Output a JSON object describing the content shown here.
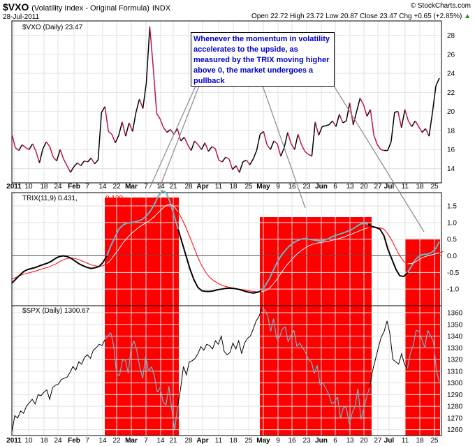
{
  "header": {
    "symbol": "$VXO",
    "description": "(Volatility Index - Original Formula)",
    "exchange": "INDX",
    "date": "28-Jul-2011",
    "brand": "© StockCharts.com",
    "ohlc": "Open 22.72  High 23.72  Low 20.87  Close 23.47  Chg +0.65 (+2.85%)",
    "ohlc_arrow": "▲"
  },
  "annotation": "Whenever the momentum in volatility accelerates to the upside, as measured by the TRIX moving higher above 0, the market undergoes a pullback",
  "colors": {
    "up": "#000000",
    "down": "#c0143c",
    "shade": "#ff0000",
    "trix": "#000000",
    "signal": "#ff0000",
    "spx": "#000000",
    "highlight": "#7ab8cc"
  },
  "chart_data": [
    {
      "type": "line",
      "title": "$VXO (Daily) 23.47",
      "x_ticks": [
        "2011",
        "10",
        "18",
        "24",
        "Feb",
        "7",
        "14",
        "22",
        "Mar",
        "7",
        "14",
        "21",
        "28",
        "Apr",
        "11",
        "18",
        "25",
        "May",
        "9",
        "16",
        "23",
        "Jun",
        "6",
        "13",
        "20",
        "27",
        "Jul",
        "11",
        "18",
        "25"
      ],
      "y_ticks": [
        14,
        16,
        18,
        20,
        22,
        24,
        26,
        28
      ],
      "ylim": [
        12.5,
        29.5
      ],
      "values": [
        17.6,
        16.2,
        15.9,
        16.5,
        16.2,
        16.0,
        16.6,
        15.8,
        14.6,
        16.1,
        16.8,
        16.3,
        15.2,
        14.8,
        16.0,
        15.0,
        14.3,
        13.6,
        14.2,
        14.6,
        14.3,
        14.8,
        14.7,
        15.1,
        14.5,
        14.9,
        19.9,
        20.5,
        17.9,
        17.6,
        16.7,
        17.5,
        18.9,
        17.4,
        18.8,
        17.9,
        19.9,
        21.3,
        20.3,
        23.0,
        28.9,
        24.6,
        19.8,
        19.2,
        18.3,
        17.8,
        18.1,
        17.6,
        18.2,
        16.9,
        17.3,
        16.5,
        15.9,
        16.9,
        16.5,
        16.0,
        16.7,
        15.8,
        16.3,
        16.1,
        14.9,
        14.7,
        15.2,
        15.0,
        13.9,
        14.3,
        13.6,
        14.7,
        14.9,
        14.4,
        15.0,
        15.9,
        17.6,
        17.9,
        16.5,
        16.0,
        16.9,
        16.6,
        15.3,
        16.2,
        17.8,
        16.6,
        16.0,
        17.6,
        16.5,
        15.8,
        15.5,
        15.3,
        18.9,
        17.5,
        18.4,
        18.5,
        18.6,
        19.0,
        18.4,
        19.7,
        18.8,
        19.0,
        20.9,
        18.6,
        20.0,
        21.4,
        20.7,
        19.5,
        20.2,
        17.5,
        16.5,
        16.0,
        15.9,
        15.9,
        16.8,
        19.9,
        20.0,
        18.3,
        20.2,
        19.0,
        18.4,
        19.0,
        18.4,
        17.8,
        18.2,
        17.4,
        19.9,
        22.7,
        23.5
      ],
      "down_values_color": "red",
      "up_values_color": "black"
    },
    {
      "type": "line",
      "title": "TRIX(11,9) 0.431, 0.130",
      "series_labels": [
        "TRIX(11,9) 0.431,",
        "0.130"
      ],
      "y_ticks": [
        -1.0,
        -0.5,
        0.0,
        0.5,
        1.0,
        1.5
      ],
      "ylim": [
        -1.5,
        1.9
      ],
      "zero_line": 0,
      "series": [
        {
          "values": [
            -0.82,
            -0.7,
            -0.58,
            -0.47,
            -0.41,
            -0.38,
            -0.35,
            -0.3,
            -0.26,
            -0.22,
            -0.16,
            -0.08,
            -0.02,
            0.0,
            -0.02,
            -0.08,
            -0.16,
            -0.24,
            -0.3,
            -0.35,
            -0.38,
            -0.36,
            -0.32,
            -0.2,
            0.0,
            0.3,
            0.55,
            0.8,
            0.92,
            0.98,
            1.0,
            1.02,
            1.05,
            1.1,
            1.2,
            1.35,
            1.55,
            1.8,
            1.95,
            1.9,
            1.6,
            1.2,
            0.8,
            0.4,
            0.0,
            -0.4,
            -0.72,
            -0.95,
            -1.05,
            -1.07,
            -1.07,
            -1.05,
            -1.02,
            -1.0,
            -0.98,
            -0.97,
            -0.98,
            -1.0,
            -1.03,
            -1.07,
            -1.1,
            -1.12,
            -1.1,
            -1.05,
            -0.9,
            -0.7,
            -0.45,
            -0.2,
            0.0,
            0.15,
            0.28,
            0.38,
            0.45,
            0.5,
            0.52,
            0.5,
            0.48,
            0.46,
            0.45,
            0.47,
            0.52,
            0.58,
            0.62,
            0.66,
            0.7,
            0.75,
            0.8,
            0.88,
            0.95,
            0.98,
            0.95,
            0.88,
            0.85,
            0.8,
            0.6,
            0.2,
            -0.1,
            -0.4,
            -0.6,
            -0.62,
            -0.5,
            -0.3,
            -0.1,
            0.0,
            0.05,
            0.05,
            0.1,
            0.2,
            0.43
          ]
        },
        {
          "values": [
            -0.7,
            -0.65,
            -0.6,
            -0.55,
            -0.52,
            -0.49,
            -0.46,
            -0.42,
            -0.38,
            -0.35,
            -0.3,
            -0.25,
            -0.18,
            -0.12,
            -0.08,
            -0.06,
            -0.08,
            -0.12,
            -0.17,
            -0.22,
            -0.27,
            -0.3,
            -0.32,
            -0.3,
            -0.24,
            -0.12,
            0.05,
            0.2,
            0.38,
            0.52,
            0.65,
            0.75,
            0.85,
            0.93,
            1.0,
            1.08,
            1.18,
            1.3,
            1.42,
            1.52,
            1.55,
            1.48,
            1.32,
            1.1,
            0.85,
            0.55,
            0.25,
            -0.05,
            -0.3,
            -0.5,
            -0.65,
            -0.75,
            -0.82,
            -0.88,
            -0.92,
            -0.95,
            -0.97,
            -0.99,
            -1.01,
            -1.03,
            -1.05,
            -1.07,
            -1.08,
            -1.08,
            -1.05,
            -0.98,
            -0.85,
            -0.7,
            -0.52,
            -0.35,
            -0.2,
            -0.07,
            0.05,
            0.15,
            0.23,
            0.3,
            0.35,
            0.38,
            0.4,
            0.42,
            0.44,
            0.47,
            0.5,
            0.53,
            0.57,
            0.62,
            0.66,
            0.71,
            0.76,
            0.81,
            0.84,
            0.86,
            0.86,
            0.84,
            0.8,
            0.66,
            0.46,
            0.22,
            0.0,
            -0.17,
            -0.24,
            -0.23,
            -0.18,
            -0.1,
            -0.04,
            0.0,
            0.03,
            0.06,
            0.09,
            0.13
          ]
        }
      ]
    },
    {
      "type": "line",
      "title": "$SPX (Daily) 1300.67",
      "y_ticks": [
        1260,
        1270,
        1280,
        1290,
        1300,
        1310,
        1320,
        1330,
        1340,
        1350,
        1360
      ],
      "ylim": [
        1255,
        1366
      ],
      "values": [
        1258,
        1272,
        1270,
        1276,
        1274,
        1280,
        1283,
        1286,
        1282,
        1290,
        1289,
        1292,
        1294,
        1286,
        1296,
        1298,
        1299,
        1303,
        1304,
        1305,
        1309,
        1314,
        1311,
        1318,
        1316,
        1322,
        1324,
        1321,
        1328,
        1330,
        1333,
        1332,
        1337,
        1340,
        1343,
        1332,
        1308,
        1306,
        1319,
        1320,
        1308,
        1330,
        1336,
        1327,
        1313,
        1304,
        1323,
        1310,
        1314,
        1306,
        1292,
        1296,
        1284,
        1281,
        1297,
        1277,
        1260,
        1280,
        1295,
        1314,
        1307,
        1318,
        1319,
        1321,
        1325,
        1331,
        1328,
        1333,
        1332,
        1329,
        1336,
        1333,
        1340,
        1327,
        1324,
        1326,
        1334,
        1329,
        1336,
        1325,
        1334,
        1338,
        1340,
        1346,
        1353,
        1357,
        1364,
        1362,
        1357,
        1344,
        1355,
        1338,
        1339,
        1346,
        1348,
        1335,
        1341,
        1345,
        1331,
        1334,
        1330,
        1326,
        1320,
        1318,
        1308,
        1315,
        1298,
        1300,
        1295,
        1290,
        1282,
        1284,
        1288,
        1270,
        1279,
        1279,
        1265,
        1274,
        1280,
        1295,
        1269,
        1278,
        1288,
        1296,
        1310,
        1320,
        1330,
        1339,
        1344,
        1353,
        1342,
        1320,
        1318,
        1316,
        1325,
        1316,
        1312,
        1325,
        1332,
        1345,
        1344,
        1337,
        1330,
        1345,
        1340,
        1335,
        1310,
        1301
      ]
    }
  ]
}
